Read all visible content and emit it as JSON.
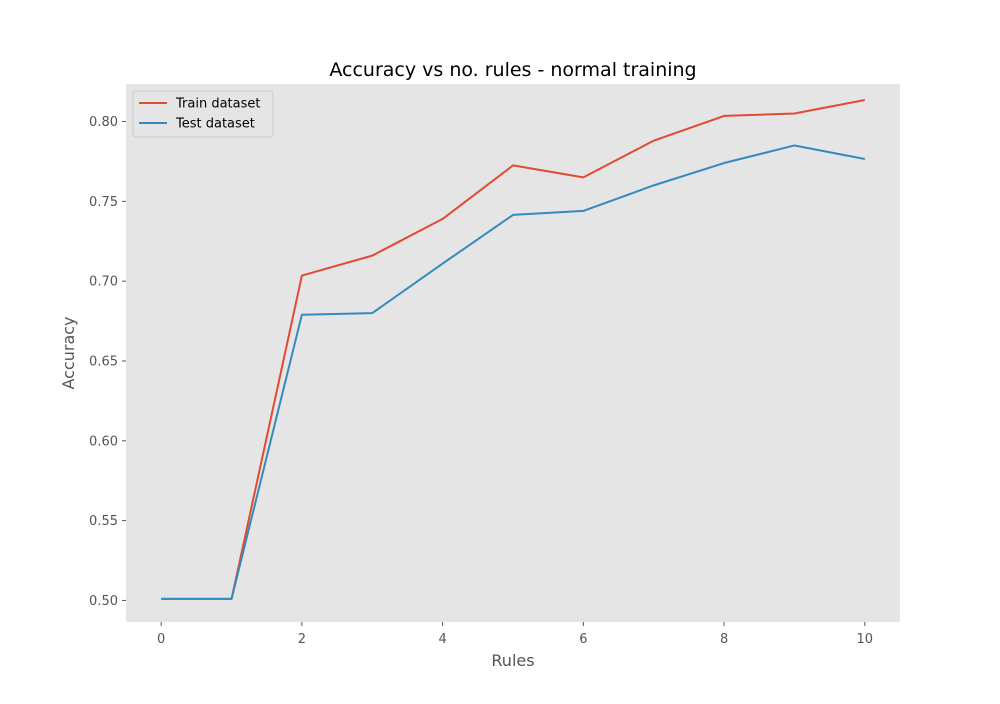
{
  "chart_data": {
    "type": "line",
    "title": "Accuracy vs no. rules - normal training",
    "xlabel": "Rules",
    "ylabel": "Accuracy",
    "x": [
      0,
      1,
      2,
      3,
      4,
      5,
      6,
      7,
      8,
      9,
      10
    ],
    "xlim": [
      -0.5,
      10.5
    ],
    "ylim": [
      0.4865,
      0.8235
    ],
    "xticks": [
      0,
      2,
      4,
      6,
      8,
      10
    ],
    "yticks": [
      0.5,
      0.55,
      0.6,
      0.65,
      0.7,
      0.75,
      0.8
    ],
    "xtick_labels": [
      "0",
      "2",
      "4",
      "6",
      "8",
      "10"
    ],
    "ytick_labels": [
      "0.50",
      "0.55",
      "0.60",
      "0.65",
      "0.70",
      "0.75",
      "0.80"
    ],
    "grid": false,
    "background": "#e5e5e5",
    "legend_position": "top-left",
    "series": [
      {
        "name": "Train dataset",
        "color": "#e24a33",
        "values": [
          0.501,
          0.501,
          0.7035,
          0.716,
          0.739,
          0.7725,
          0.765,
          0.788,
          0.8035,
          0.805,
          0.8135
        ]
      },
      {
        "name": "Test dataset",
        "color": "#348abd",
        "values": [
          0.501,
          0.501,
          0.679,
          0.68,
          0.711,
          0.7415,
          0.744,
          0.76,
          0.774,
          0.785,
          0.7765
        ]
      }
    ]
  }
}
